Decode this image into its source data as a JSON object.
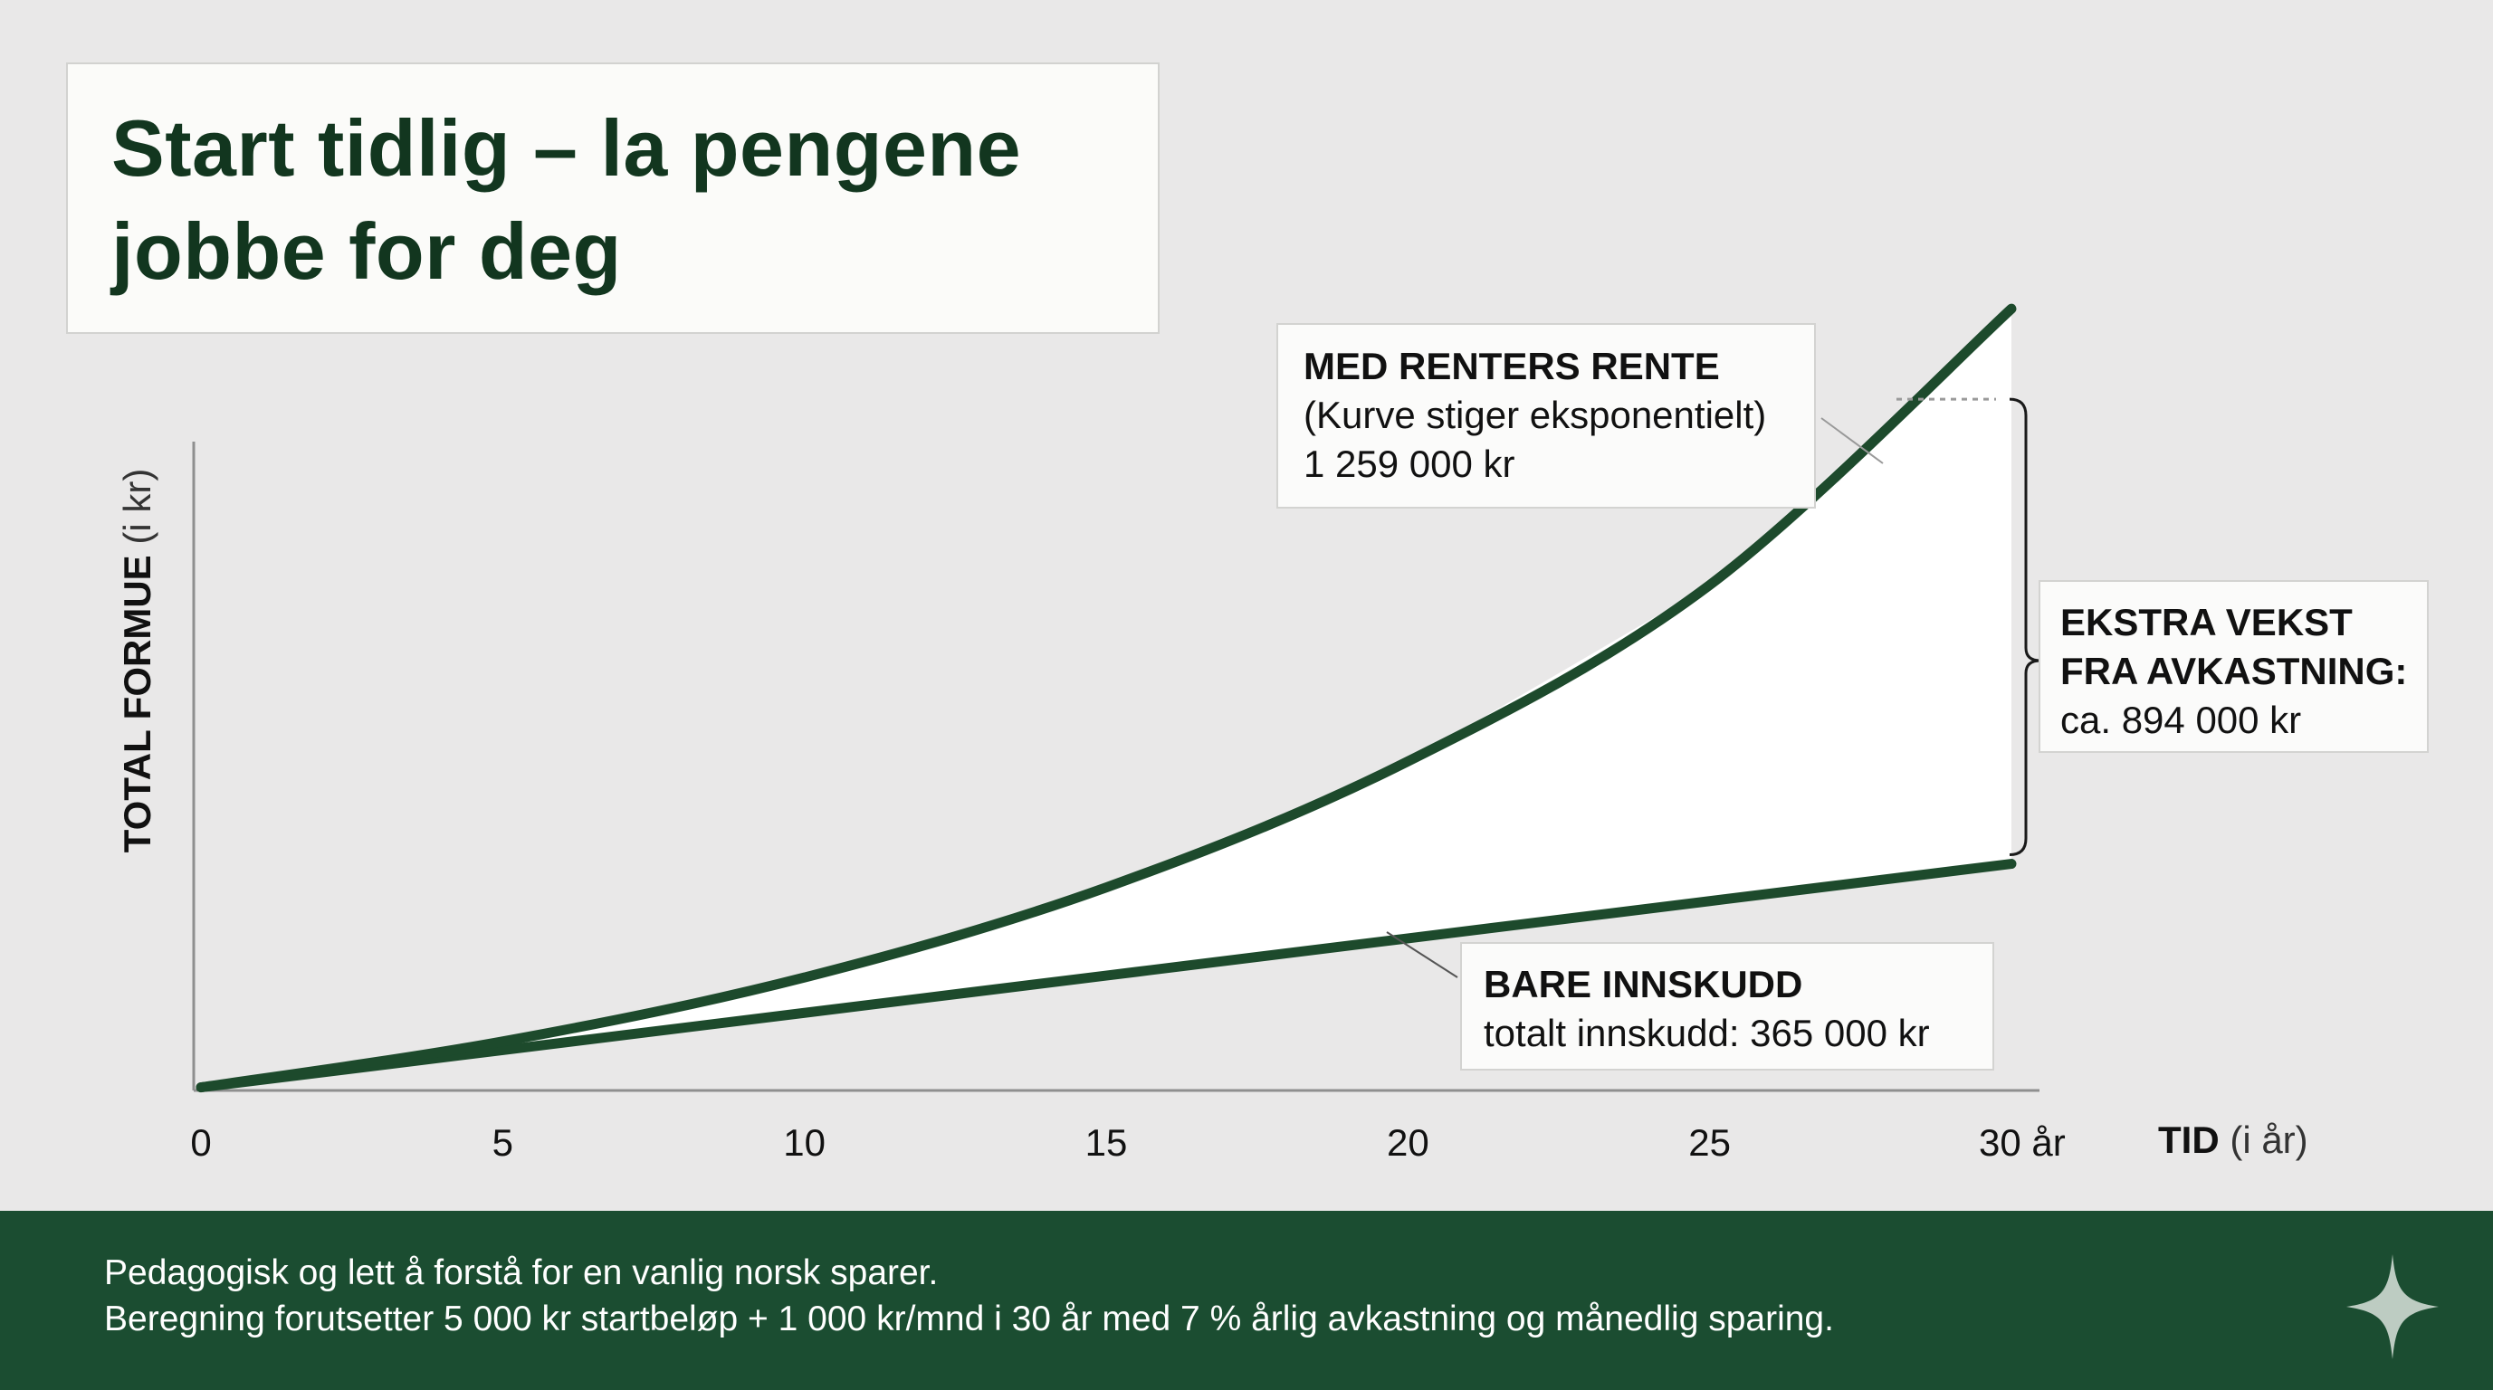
{
  "title": "Start tidlig – la pengene jobbe for deg",
  "colors": {
    "background": "#e9e8e8",
    "curve": "#1d4a2c",
    "gap_fill": "#ffffff",
    "footer": "#1b4d31",
    "title": "#12361f"
  },
  "axes": {
    "ylabel_bold": "TOTAL FORMUE",
    "ylabel_unit": "(i kr)",
    "xlabel_bold": "TID",
    "xlabel_unit": "(i år)"
  },
  "annotations": {
    "compound": {
      "head": "MED RENTERS RENTE",
      "line1": "(Kurve stiger eksponentielt)",
      "line2": "1 259 000 kr"
    },
    "extra": {
      "head1": "EKSTRA VEKST",
      "head2": "FRA AVKASTNING:",
      "line": "ca. 894 000 kr"
    },
    "deposit": {
      "head": "BARE INNSKUDD",
      "line": "totalt innskudd: 365 000 kr"
    }
  },
  "footer": {
    "line1": "Pedagogisk og lett å forstå for en vanlig norsk sparer.",
    "line2": "Beregning forutsetter 5 000 kr startbeløp + 1 000 kr/mnd i 30 år med 7 % årlig avkastning og månedlig sparing.",
    "icon": "sparkle-icon"
  },
  "chart_data": {
    "type": "line",
    "title": "Start tidlig – la pengene jobbe for deg",
    "xlabel": "TID (i år)",
    "ylabel": "TOTAL FORMUE (i kr)",
    "xlim": [
      0,
      30
    ],
    "ylim": [
      0,
      1370000
    ],
    "x_ticks": [
      0,
      5,
      10,
      15,
      20,
      25,
      30
    ],
    "x_tick_labels": [
      "0",
      "5",
      "10",
      "15",
      "20",
      "25",
      "30 år"
    ],
    "y_ticks_shown": false,
    "grid": false,
    "fill_between_series": true,
    "series": [
      {
        "name": "MED RENTERS RENTE",
        "x": [
          0,
          5,
          10,
          15,
          20,
          25,
          30
        ],
        "values": [
          5000,
          79000,
          182000,
          327000,
          530000,
          814000,
          1259000
        ]
      },
      {
        "name": "BARE INNSKUDD",
        "x": [
          0,
          5,
          10,
          15,
          20,
          25,
          30
        ],
        "values": [
          5000,
          65000,
          125000,
          185000,
          245000,
          305000,
          365000
        ]
      }
    ]
  }
}
